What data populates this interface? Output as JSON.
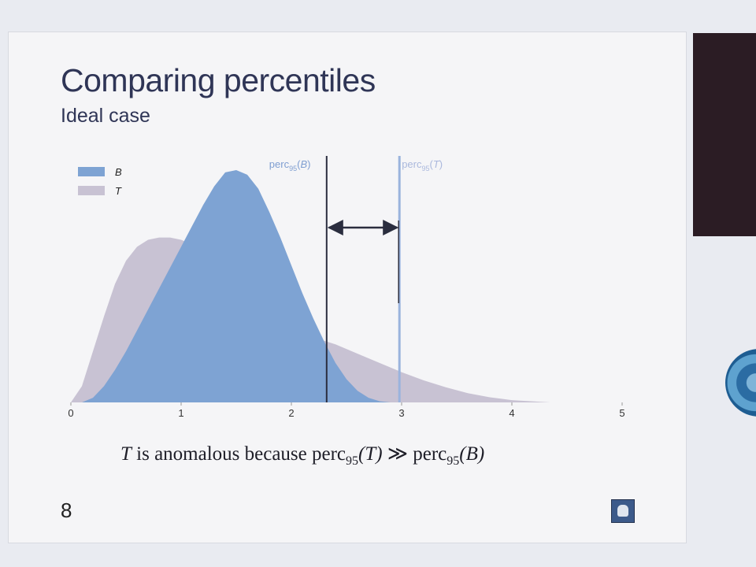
{
  "slide": {
    "title": "Comparing percentiles",
    "subtitle": "Ideal case",
    "caption": {
      "t": "T",
      "text1": " is anomalous because perc",
      "sub1": "95",
      "arg1": "(T)",
      "rel": " ≫ perc",
      "sub2": "95",
      "arg2": "(B)"
    },
    "page_number": "8"
  },
  "icons": {
    "logo": "mascot-logo-icon",
    "badge": "circular-emblem-icon"
  },
  "colors": {
    "B": "#7ea3d3",
    "T": "#c8c2d3",
    "line": "#2a2d3e",
    "percT_line": "#9ab3dd",
    "label_B": "#7f9ed1",
    "label_T": "#aab8dd"
  },
  "chart_data": {
    "type": "area",
    "title": "",
    "xlabel": "",
    "ylabel": "",
    "xlim": [
      0,
      5
    ],
    "xticks": [
      "0",
      "1",
      "2",
      "3",
      "4",
      "5"
    ],
    "grid": false,
    "legend_position": "top-left",
    "series": [
      {
        "name": "B",
        "x": [
          0.1,
          0.2,
          0.3,
          0.4,
          0.5,
          0.6,
          0.7,
          0.8,
          0.9,
          1.0,
          1.1,
          1.2,
          1.3,
          1.4,
          1.5,
          1.6,
          1.7,
          1.8,
          1.9,
          2.0,
          2.1,
          2.2,
          2.3,
          2.4,
          2.5,
          2.6,
          2.7,
          2.8,
          2.9
        ],
        "y": [
          0,
          0.02,
          0.07,
          0.14,
          0.22,
          0.31,
          0.4,
          0.49,
          0.58,
          0.67,
          0.76,
          0.85,
          0.93,
          0.99,
          1.0,
          0.98,
          0.92,
          0.82,
          0.71,
          0.59,
          0.47,
          0.36,
          0.26,
          0.17,
          0.1,
          0.05,
          0.02,
          0.005,
          0
        ]
      },
      {
        "name": "T",
        "x": [
          0.0,
          0.1,
          0.2,
          0.3,
          0.4,
          0.5,
          0.6,
          0.7,
          0.8,
          0.9,
          1.0,
          1.1,
          1.2,
          1.3,
          1.4,
          1.5,
          1.6,
          1.7,
          1.8,
          1.9,
          2.0,
          2.2,
          2.4,
          2.6,
          2.8,
          3.0,
          3.2,
          3.4,
          3.6,
          3.8,
          4.0,
          4.2,
          4.35
        ],
        "y": [
          0,
          0.07,
          0.22,
          0.37,
          0.51,
          0.61,
          0.67,
          0.7,
          0.71,
          0.71,
          0.7,
          0.68,
          0.66,
          0.63,
          0.59,
          0.55,
          0.5,
          0.45,
          0.4,
          0.35,
          0.32,
          0.28,
          0.25,
          0.21,
          0.17,
          0.13,
          0.095,
          0.065,
          0.04,
          0.022,
          0.01,
          0.004,
          0
        ]
      }
    ],
    "annotations": [
      {
        "label": "perc",
        "sub": "95",
        "arg_open": "(",
        "arg": "B",
        "arg_close": ")",
        "x": 2.32
      },
      {
        "label": "perc",
        "sub": "95",
        "arg_open": "(",
        "arg": "T",
        "arg_close": ")",
        "x": 2.98
      }
    ]
  }
}
